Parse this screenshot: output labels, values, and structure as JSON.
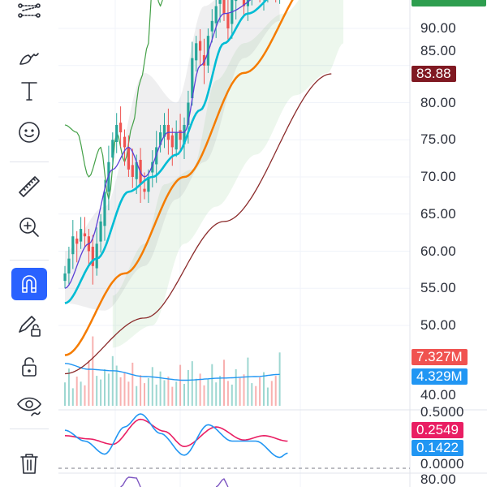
{
  "toolbar": {
    "tools": [
      {
        "name": "trend-line-tools",
        "icon": "trend-lines-icon"
      },
      {
        "name": "brush",
        "icon": "brush-icon"
      },
      {
        "name": "text",
        "icon": "text-icon"
      },
      {
        "name": "emoji",
        "icon": "smiley-icon"
      },
      {
        "name": "measure",
        "icon": "ruler-icon"
      },
      {
        "name": "zoom-in",
        "icon": "zoom-in-icon"
      },
      {
        "name": "magnet",
        "icon": "magnet-icon",
        "active": true
      },
      {
        "name": "stay-in-drawing-mode",
        "icon": "pencil-lock-icon"
      },
      {
        "name": "lock-drawings",
        "icon": "unlock-icon"
      },
      {
        "name": "hide-drawings",
        "icon": "eye-icon"
      },
      {
        "name": "remove-drawings",
        "icon": "trash-icon"
      }
    ],
    "accent": "#2962ff"
  },
  "price_axis": {
    "labels": [
      "90.00",
      "85.00",
      "80.00",
      "75.00",
      "70.00",
      "65.00",
      "60.00",
      "55.00",
      "50.00",
      "40.00"
    ],
    "last_price": {
      "value": "83.88",
      "color": "#801922"
    },
    "top_tag_color": "#2e9e4f",
    "volume": {
      "value": "7.327M",
      "color": "#f05350"
    },
    "volume_ma": {
      "value": "4.329M",
      "color": "#2196f3"
    }
  },
  "macd_axis": {
    "labels": [
      "0.5000",
      "0.0000"
    ],
    "signal": {
      "value": "0.2549",
      "color": "#e91e63"
    },
    "macd": {
      "value": "0.1422",
      "color": "#2196f3"
    }
  },
  "lower_pane_axis": {
    "labels": [
      "80.00"
    ]
  },
  "chart_data": {
    "type": "candlestick",
    "closes": [
      57,
      59,
      62,
      61,
      63,
      62,
      60,
      58,
      61,
      64,
      68,
      72,
      75,
      77,
      76,
      74,
      71,
      70,
      72,
      69,
      68,
      70,
      72,
      74,
      76,
      77,
      75,
      74,
      76,
      75,
      77,
      80,
      86,
      88,
      87,
      85,
      89,
      91,
      93,
      95,
      92,
      90,
      94,
      96,
      95,
      93,
      95,
      97,
      96,
      95,
      96,
      97,
      96,
      95,
      96
    ],
    "volumes": [
      3.2,
      5.1,
      2.4,
      4.0,
      3.3,
      2.8,
      6.2,
      9.5,
      4.1,
      3.6,
      5.0,
      4.4,
      6.8,
      5.5,
      3.9,
      4.6,
      3.3,
      5.9,
      2.7,
      4.2,
      3.1,
      3.8,
      5.3,
      2.9,
      4.7,
      3.5,
      4.0,
      2.6,
      3.3,
      5.6,
      3.0,
      4.9,
      6.1,
      3.7,
      4.4,
      2.8,
      3.6,
      5.7,
      3.2,
      4.1,
      6.3,
      3.4,
      2.9,
      5.0,
      3.8,
      4.3,
      6.6,
      3.1,
      2.7,
      3.9,
      4.6,
      2.5,
      3.4,
      4.1,
      7.3
    ],
    "sma_fast": [
      [
        0,
        55
      ],
      [
        6,
        61
      ],
      [
        12,
        71
      ],
      [
        16,
        74
      ],
      [
        20,
        70
      ],
      [
        26,
        76
      ],
      [
        30,
        76
      ],
      [
        34,
        85
      ],
      [
        40,
        92
      ],
      [
        54,
        96
      ]
    ],
    "ema_mid": [
      [
        0,
        53
      ],
      [
        8,
        59
      ],
      [
        16,
        68
      ],
      [
        22,
        70
      ],
      [
        28,
        73
      ],
      [
        34,
        79
      ],
      [
        40,
        88
      ],
      [
        46,
        92
      ],
      [
        54,
        95
      ]
    ],
    "sma_50": [
      [
        0,
        46
      ],
      [
        15,
        57
      ],
      [
        30,
        70
      ],
      [
        45,
        84
      ],
      [
        63,
        97
      ]
    ],
    "sma_200": [
      [
        0,
        43.5
      ],
      [
        20,
        51
      ],
      [
        40,
        64
      ],
      [
        67,
        83.88
      ]
    ],
    "lagging_span": [
      [
        0,
        77
      ],
      [
        3,
        76
      ],
      [
        6,
        70
      ],
      [
        9,
        74
      ],
      [
        11,
        67
      ],
      [
        13,
        76
      ],
      [
        15,
        72
      ],
      [
        17,
        77
      ],
      [
        19,
        83
      ],
      [
        21,
        88
      ],
      [
        22,
        97
      ],
      [
        24,
        93
      ],
      [
        26,
        98
      ]
    ],
    "cloud_upper": [
      [
        12,
        54
      ],
      [
        20,
        61
      ],
      [
        25,
        69
      ],
      [
        32,
        71
      ],
      [
        38,
        83
      ],
      [
        45,
        88
      ],
      [
        55,
        92
      ],
      [
        63,
        96
      ],
      [
        70,
        99
      ]
    ],
    "cloud_lower": [
      [
        12,
        47
      ],
      [
        22,
        50
      ],
      [
        30,
        61
      ],
      [
        38,
        66
      ],
      [
        48,
        73
      ],
      [
        58,
        81
      ],
      [
        66,
        84
      ],
      [
        70,
        88
      ]
    ],
    "band_upper": [
      [
        0,
        60
      ],
      [
        10,
        66
      ],
      [
        20,
        84
      ],
      [
        28,
        80
      ],
      [
        35,
        93
      ],
      [
        45,
        98
      ],
      [
        54,
        99
      ]
    ],
    "band_lower": [
      [
        0,
        53
      ],
      [
        10,
        52
      ],
      [
        20,
        58
      ],
      [
        28,
        67
      ],
      [
        35,
        72
      ],
      [
        45,
        86
      ],
      [
        54,
        91
      ]
    ],
    "volume_ma": [
      [
        0,
        5.8
      ],
      [
        6,
        5.0
      ],
      [
        12,
        4.8
      ],
      [
        20,
        4.0
      ],
      [
        30,
        3.5
      ],
      [
        40,
        3.8
      ],
      [
        48,
        4.0
      ],
      [
        54,
        4.3
      ]
    ],
    "macd": [
      [
        0,
        0.35
      ],
      [
        5,
        0.25
      ],
      [
        10,
        0.13
      ],
      [
        15,
        0.38
      ],
      [
        19,
        0.5
      ],
      [
        24,
        0.32
      ],
      [
        30,
        0.12
      ],
      [
        36,
        0.4
      ],
      [
        42,
        0.25
      ],
      [
        48,
        0.25
      ],
      [
        54,
        0.1
      ],
      [
        56,
        0.14
      ]
    ],
    "macd_signal": [
      [
        0,
        0.3
      ],
      [
        6,
        0.27
      ],
      [
        12,
        0.22
      ],
      [
        19,
        0.45
      ],
      [
        25,
        0.34
      ],
      [
        30,
        0.2
      ],
      [
        38,
        0.38
      ],
      [
        45,
        0.26
      ],
      [
        50,
        0.3
      ],
      [
        56,
        0.25
      ]
    ],
    "colors": {
      "up": "#26a69a",
      "down": "#ef5350",
      "sma_fast": "#5b3fd6",
      "ema_mid": "#00bcd4",
      "sma_50": "#f57c00",
      "sma_200": "#8b2b2b",
      "lagging": "#43a047"
    }
  }
}
